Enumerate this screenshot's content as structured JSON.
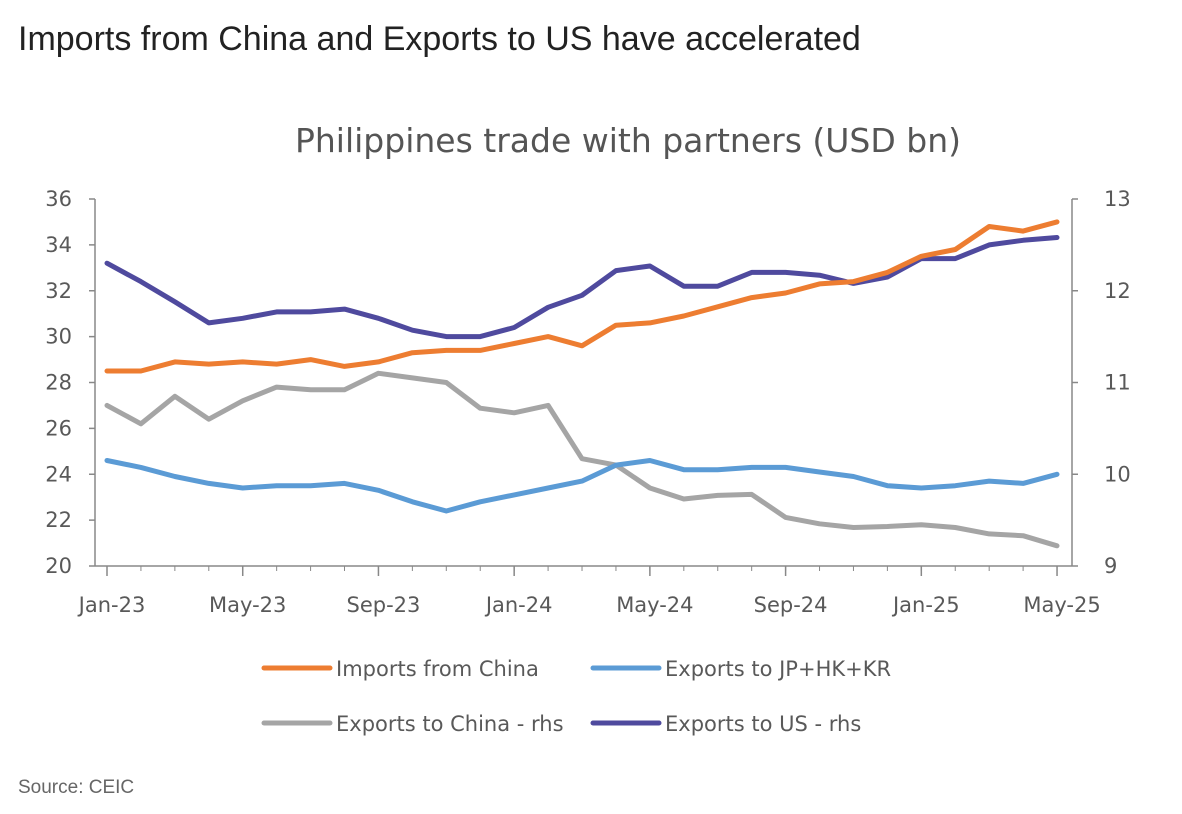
{
  "headline": "Imports from China and Exports to US have accelerated",
  "source": "Source: CEIC",
  "chart_data": {
    "type": "line",
    "title": "Philippines trade with partners (USD bn)",
    "x": [
      "Jan-23",
      "Feb-23",
      "Mar-23",
      "Apr-23",
      "May-23",
      "Jun-23",
      "Jul-23",
      "Aug-23",
      "Sep-23",
      "Oct-23",
      "Nov-23",
      "Dec-23",
      "Jan-24",
      "Feb-24",
      "Mar-24",
      "Apr-24",
      "May-24",
      "Jun-24",
      "Jul-24",
      "Aug-24",
      "Sep-24",
      "Oct-24",
      "Nov-24",
      "Dec-24",
      "Jan-25",
      "Feb-25",
      "Mar-25",
      "Apr-25",
      "May-25"
    ],
    "x_tick_labels": [
      "Jan-23",
      "May-23",
      "Sep-23",
      "Jan-24",
      "May-24",
      "Sep-24",
      "Jan-25",
      "May-25"
    ],
    "y_left": {
      "range": [
        20,
        36
      ],
      "ticks": [
        "20",
        "22",
        "24",
        "26",
        "28",
        "30",
        "32",
        "34",
        "36"
      ]
    },
    "y_right": {
      "range": [
        9,
        13
      ],
      "ticks": [
        "9",
        "10",
        "11",
        "12",
        "13"
      ]
    },
    "grid": false,
    "legend_position": "bottom",
    "series": [
      {
        "name": "Imports from China",
        "axis": "left",
        "color": "#ED7D31",
        "values": [
          28.5,
          28.5,
          28.9,
          28.8,
          28.9,
          28.8,
          29.0,
          28.7,
          28.9,
          29.3,
          29.4,
          29.4,
          29.7,
          30.0,
          29.6,
          30.5,
          30.6,
          30.9,
          31.3,
          31.7,
          31.9,
          32.3,
          32.4,
          32.8,
          33.5,
          33.8,
          34.8,
          34.6,
          35.0
        ]
      },
      {
        "name": "Exports to JP+HK+KR",
        "axis": "left",
        "color": "#5B9BD5",
        "values": [
          24.6,
          24.3,
          23.9,
          23.6,
          23.4,
          23.5,
          23.5,
          23.6,
          23.3,
          22.8,
          22.4,
          22.8,
          23.1,
          23.4,
          23.7,
          24.4,
          24.6,
          24.2,
          24.2,
          24.3,
          24.3,
          24.1,
          23.9,
          23.5,
          23.4,
          23.5,
          23.7,
          23.6,
          24.0
        ]
      },
      {
        "name": "Exports to China - rhs",
        "axis": "right",
        "color": "#A5A5A5",
        "values": [
          10.75,
          10.55,
          10.85,
          10.6,
          10.8,
          10.95,
          10.92,
          10.92,
          11.1,
          11.05,
          11.0,
          10.72,
          10.67,
          10.75,
          10.17,
          10.1,
          9.85,
          9.73,
          9.77,
          9.78,
          9.53,
          9.46,
          9.42,
          9.43,
          9.45,
          9.42,
          9.35,
          9.33,
          9.22
        ]
      },
      {
        "name": "Exports to US - rhs",
        "axis": "right",
        "color": "#4F4A9E",
        "values": [
          12.3,
          12.1,
          11.88,
          11.65,
          11.7,
          11.77,
          11.77,
          11.8,
          11.7,
          11.57,
          11.5,
          11.5,
          11.6,
          11.82,
          11.95,
          12.22,
          12.27,
          12.05,
          12.05,
          12.2,
          12.2,
          12.17,
          12.08,
          12.15,
          12.35,
          12.35,
          12.5,
          12.55,
          12.58
        ]
      }
    ]
  }
}
